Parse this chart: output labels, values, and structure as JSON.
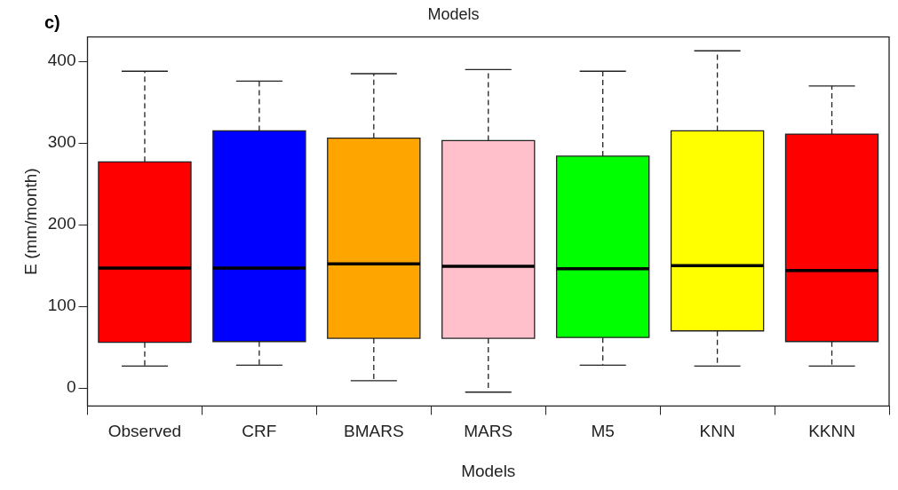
{
  "chart_data": {
    "type": "box",
    "title": "Models",
    "xlabel": "Models",
    "ylabel": "E (mm/month)",
    "annotations": [
      "c)"
    ],
    "categories": [
      "Observed",
      "CRF",
      "BMARS",
      "MARS",
      "M5",
      "KNN",
      "KKNN"
    ],
    "colors": [
      "#ff0000",
      "#0000ff",
      "#ffa500",
      "#ffc0cb",
      "#00ff00",
      "#ffff00",
      "#ff0000"
    ],
    "boxes": [
      {
        "low": 27,
        "q1": 56,
        "median": 147,
        "q3": 277,
        "high": 388
      },
      {
        "low": 28,
        "q1": 57,
        "median": 147,
        "q3": 315,
        "high": 376
      },
      {
        "low": 9,
        "q1": 61,
        "median": 152,
        "q3": 306,
        "high": 385
      },
      {
        "low": -5,
        "q1": 61,
        "median": 149,
        "q3": 303,
        "high": 390
      },
      {
        "low": 28,
        "q1": 62,
        "median": 146,
        "q3": 284,
        "high": 388
      },
      {
        "low": 27,
        "q1": 70,
        "median": 150,
        "q3": 315,
        "high": 413
      },
      {
        "low": 27,
        "q1": 57,
        "median": 144,
        "q3": 311,
        "high": 370
      }
    ],
    "ylim": [
      -22,
      430
    ],
    "yticks": [
      0,
      100,
      200,
      300,
      400
    ],
    "grid": false,
    "legend": false,
    "line_style": "dashed"
  }
}
